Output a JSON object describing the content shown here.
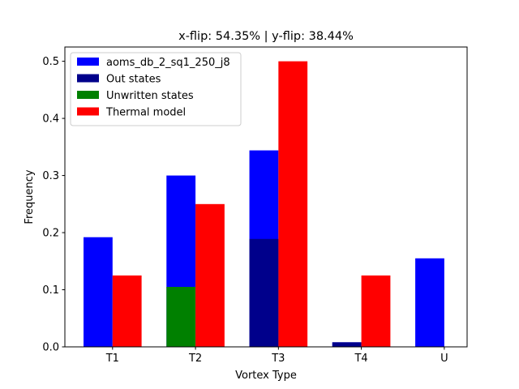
{
  "chart_data": {
    "type": "bar",
    "title": "x-flip:  54.35%  |  y-flip:  38.44%",
    "xlabel": "Vortex Type",
    "ylabel": "Frequency",
    "categories": [
      "T1",
      "T2",
      "T3",
      "T4",
      "U"
    ],
    "ylim": [
      0,
      0.525
    ],
    "yticks": [
      "0.0",
      "0.1",
      "0.2",
      "0.3",
      "0.4",
      "0.5"
    ],
    "grid": false,
    "legend_position": "top-left",
    "series": [
      {
        "name": "aoms_db_2_sq1_250_j8",
        "color": "#0000ff",
        "slot": "left",
        "values": [
          0.192,
          0.3,
          0.344,
          0.008,
          0.155
        ]
      },
      {
        "name": "Out states",
        "color": "#00008b",
        "slot": "left",
        "values": [
          0,
          0,
          0.189,
          0.008,
          0
        ]
      },
      {
        "name": "Unwritten states",
        "color": "#008000",
        "slot": "left",
        "values": [
          0,
          0.105,
          0,
          0,
          0
        ]
      },
      {
        "name": "Thermal model",
        "color": "#ff0000",
        "slot": "right",
        "values": [
          0.125,
          0.25,
          0.5,
          0.125,
          0
        ]
      }
    ]
  }
}
